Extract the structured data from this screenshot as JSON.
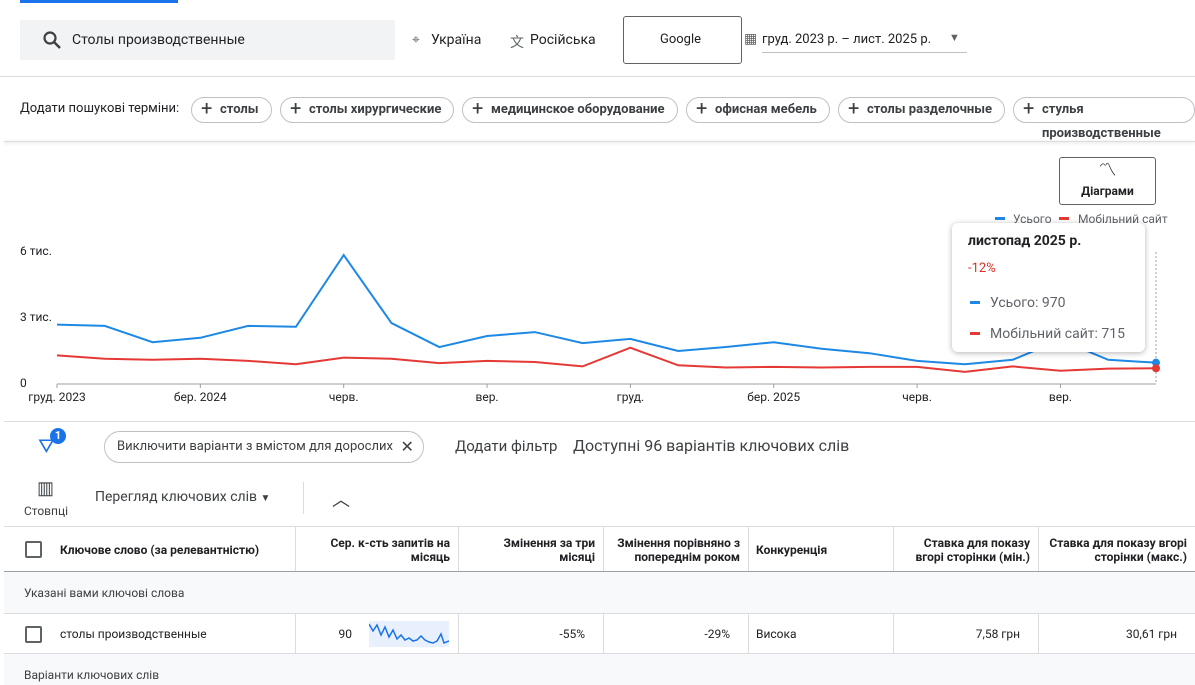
{
  "search": {
    "query": "Столы производственные",
    "location": "Україна",
    "language": "Російська",
    "network": "Google",
    "date_range": "груд. 2023 р. – лист. 2025 р."
  },
  "suggestions": {
    "label": "Додати пошукові терміни:",
    "terms": [
      "столы",
      "столы хирургические",
      "медицинское оборудование",
      "офисная мебель",
      "столы разделочные",
      "стулья производственные"
    ]
  },
  "chart_button": "Діаграми",
  "chart_data": {
    "type": "line",
    "categories": [
      "груд. 2023",
      null,
      null,
      "бер. 2024",
      null,
      null,
      "черв.",
      null,
      null,
      "вер.",
      null,
      null,
      "груд.",
      null,
      null,
      "бер. 2025",
      null,
      null,
      "черв.",
      null,
      null,
      "вер.",
      null,
      null
    ],
    "series": [
      {
        "name": "Усього",
        "color": "#1e88e5",
        "values": [
          2700,
          2640,
          1900,
          2100,
          2640,
          2600,
          5860,
          2770,
          1680,
          2180,
          2360,
          1860,
          2050,
          1500,
          1680,
          1900,
          1600,
          1400,
          1050,
          900,
          1100,
          2000,
          1100,
          970
        ]
      },
      {
        "name": "Мобільний сайт",
        "color": "#e53935",
        "values": [
          1300,
          1150,
          1100,
          1150,
          1050,
          900,
          1200,
          1150,
          950,
          1050,
          1000,
          800,
          1650,
          850,
          750,
          780,
          750,
          780,
          780,
          550,
          800,
          600,
          700,
          715
        ]
      }
    ],
    "ylim": [
      0,
      6000
    ],
    "yticks": [
      0,
      {
        "value": 3000,
        "label": "3 тис."
      },
      {
        "value": 6000,
        "label": "6 тис."
      }
    ]
  },
  "tooltip": {
    "title": "листопад 2025 р.",
    "change": "-12%",
    "lines": [
      "Усього: 970",
      "Мобільний сайт: 715"
    ]
  },
  "filters": {
    "badge": "1",
    "chip": "Виключити варіанти з вмістом для дорослих",
    "add_filter": "Додати фільтр",
    "summary": "Доступні 96 варіантів ключових слів"
  },
  "toolbar": {
    "columns": "Стовпці",
    "view": "Перегляд ключових слів"
  },
  "table": {
    "headers": [
      "Ключове слово (за релевантністю)",
      "Сер. к-сть запитів на місяць",
      "Змінення за три місяці",
      "Змінення порівняно з попереднім роком",
      "Конкуренція",
      "Ставка для показу вгорі сторінки (мін.)",
      "Ставка для показу вгорі сторінки (макс.)"
    ],
    "groups": [
      {
        "title": "Указані вами ключові слова",
        "rows": [
          [
            "столы производственные",
            "90",
            "-55%",
            "-29%",
            "Висока",
            "7,58 грн",
            "30,61 грн"
          ]
        ]
      },
      {
        "title": "Варіанти ключових слів",
        "rows": []
      }
    ]
  }
}
